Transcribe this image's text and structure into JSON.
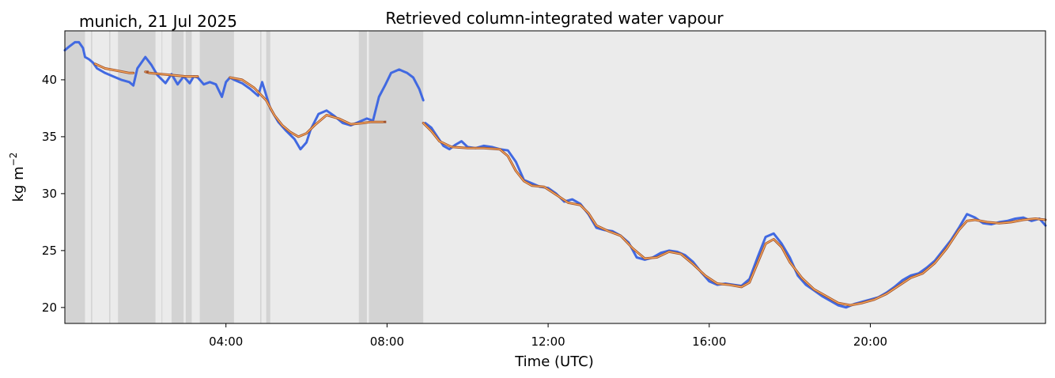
{
  "chart_data": {
    "type": "line",
    "title": "Retrieved column-integrated water vapour",
    "location_date": "munich, 21 Jul 2025",
    "xlabel": "Time (UTC)",
    "ylabel": "kg m",
    "ylabel_sup": "−2",
    "xlim": [
      0,
      24.35
    ],
    "ylim": [
      18.6,
      44.3
    ],
    "x_ticks": [
      {
        "value": 4,
        "label": "04:00"
      },
      {
        "value": 8,
        "label": "08:00"
      },
      {
        "value": 12,
        "label": "12:00"
      },
      {
        "value": 16,
        "label": "16:00"
      },
      {
        "value": 20,
        "label": "20:00"
      }
    ],
    "y_ticks": [
      {
        "value": 20,
        "label": "20"
      },
      {
        "value": 25,
        "label": "25"
      },
      {
        "value": 30,
        "label": "30"
      },
      {
        "value": 35,
        "label": "35"
      },
      {
        "value": 40,
        "label": "40"
      }
    ],
    "colors": {
      "background": "#ebebeb",
      "cloud_shade": "#d3d3d3",
      "raw": "#4169e1",
      "smooth_outline": "#a0522d",
      "smooth_core": "#ffb060"
    },
    "shaded_intervals": [
      [
        0.0,
        0.5
      ],
      [
        0.65,
        0.68
      ],
      [
        1.1,
        1.13
      ],
      [
        1.32,
        2.25
      ],
      [
        2.4,
        2.42
      ],
      [
        2.65,
        2.95
      ],
      [
        3.0,
        3.15
      ],
      [
        3.35,
        4.2
      ],
      [
        4.85,
        4.88
      ],
      [
        5.0,
        5.1
      ],
      [
        7.3,
        7.5
      ],
      [
        7.55,
        8.9
      ]
    ],
    "series": [
      {
        "name": "raw",
        "x": [
          0.0,
          0.1,
          0.25,
          0.35,
          0.45,
          0.5,
          0.6,
          0.7,
          0.8,
          1.0,
          1.2,
          1.4,
          1.6,
          1.7,
          1.8,
          2.0,
          2.15,
          2.3,
          2.5,
          2.65,
          2.8,
          2.95,
          3.1,
          3.2,
          3.3,
          3.45,
          3.6,
          3.75,
          3.9,
          4.0,
          4.1,
          4.2,
          4.4,
          4.6,
          4.8,
          4.9,
          5.1,
          5.3,
          5.5,
          5.7,
          5.85,
          6.0,
          6.1,
          6.3,
          6.5,
          6.7,
          6.9,
          7.1,
          7.3,
          7.5,
          7.65,
          7.8,
          7.95,
          8.1,
          8.3,
          8.5,
          8.65,
          8.8,
          8.9
        ],
        "y": [
          42.6,
          42.9,
          43.3,
          43.3,
          42.8,
          42.0,
          41.8,
          41.5,
          41.0,
          40.6,
          40.3,
          40.0,
          39.8,
          39.5,
          41.0,
          42.0,
          41.3,
          40.4,
          39.7,
          40.5,
          39.6,
          40.3,
          39.7,
          40.3,
          40.2,
          39.6,
          39.8,
          39.6,
          38.5,
          39.8,
          40.2,
          40.0,
          39.7,
          39.2,
          38.6,
          39.8,
          37.5,
          36.3,
          35.5,
          34.8,
          33.9,
          34.5,
          35.6,
          37.0,
          37.3,
          36.8,
          36.2,
          36.0,
          36.3,
          36.6,
          36.4,
          38.5,
          39.5,
          40.6,
          40.9,
          40.6,
          40.2,
          39.2,
          38.2
        ]
      },
      {
        "name": "raw",
        "x": [
          8.95,
          9.1,
          9.25,
          9.4,
          9.55,
          9.7,
          9.85,
          10.0,
          10.2,
          10.4,
          10.6,
          10.8,
          11.0,
          11.2,
          11.4,
          11.6,
          11.8,
          12.0,
          12.2,
          12.4,
          12.6,
          12.8,
          13.0,
          13.2,
          13.4,
          13.6,
          13.8,
          14.0,
          14.2,
          14.4,
          14.6,
          14.8,
          15.0,
          15.2,
          15.4,
          15.6,
          15.8,
          16.0,
          16.2,
          16.4,
          16.6,
          16.8,
          17.0,
          17.2,
          17.4,
          17.6,
          17.8,
          18.0,
          18.2,
          18.4,
          18.6,
          18.8,
          19.0,
          19.2,
          19.4,
          19.6,
          19.8,
          20.0,
          20.2,
          20.4,
          20.6,
          20.8,
          21.0,
          21.2,
          21.4,
          21.6,
          21.8,
          22.0,
          22.2,
          22.4,
          22.6,
          22.8,
          23.0,
          23.2,
          23.4,
          23.6,
          23.8,
          24.0,
          24.2,
          24.35
        ],
        "y": [
          36.2,
          35.8,
          35.0,
          34.2,
          33.9,
          34.3,
          34.6,
          34.1,
          34.0,
          34.2,
          34.1,
          33.9,
          33.8,
          32.8,
          31.2,
          30.9,
          30.6,
          30.5,
          30.0,
          29.3,
          29.5,
          29.1,
          28.2,
          27.0,
          26.8,
          26.7,
          26.3,
          25.7,
          24.4,
          24.2,
          24.4,
          24.8,
          25.0,
          24.9,
          24.6,
          24.0,
          23.1,
          22.3,
          22.0,
          22.1,
          22.0,
          21.9,
          22.5,
          24.4,
          26.2,
          26.5,
          25.6,
          24.4,
          22.8,
          22.0,
          21.5,
          21.0,
          20.6,
          20.2,
          20.0,
          20.3,
          20.5,
          20.7,
          20.9,
          21.3,
          21.8,
          22.4,
          22.8,
          23.0,
          23.5,
          24.1,
          25.0,
          25.9,
          27.0,
          28.2,
          27.9,
          27.4,
          27.3,
          27.5,
          27.6,
          27.8,
          27.9,
          27.6,
          27.8,
          27.2
        ]
      },
      {
        "name": "smoothed",
        "x": [
          0.75,
          1.0,
          1.3,
          1.6,
          1.7
        ],
        "y": [
          41.4,
          41.0,
          40.8,
          40.6,
          40.6
        ]
      },
      {
        "name": "smoothed",
        "x": [
          2.0,
          2.1,
          2.4,
          2.7,
          3.0,
          3.3
        ],
        "y": [
          40.7,
          40.6,
          40.5,
          40.4,
          40.3,
          40.3
        ]
      },
      {
        "name": "smoothed",
        "x": [
          4.1,
          4.4,
          4.7,
          5.0,
          5.2,
          5.4,
          5.6,
          5.8,
          6.0,
          6.2,
          6.5,
          6.8,
          7.1,
          7.4,
          7.6,
          7.9
        ],
        "y": [
          40.2,
          40.0,
          39.3,
          38.2,
          36.9,
          36.0,
          35.4,
          35.0,
          35.3,
          36.0,
          36.9,
          36.6,
          36.1,
          36.2,
          36.3,
          36.3
        ]
      },
      {
        "name": "smoothed",
        "x": [
          8.9,
          9.1,
          9.3,
          9.6,
          10.0,
          10.4,
          10.8,
          11.0,
          11.2,
          11.4,
          11.6,
          11.9,
          12.2,
          12.5,
          12.8,
          13.0,
          13.2,
          13.5,
          13.8,
          14.1,
          14.4,
          14.7,
          15.0,
          15.3,
          15.6,
          15.9,
          16.2,
          16.5,
          16.8,
          17.0,
          17.2,
          17.4,
          17.6,
          17.8,
          18.0,
          18.3,
          18.6,
          18.9,
          19.2,
          19.5,
          19.8,
          20.1,
          20.4,
          20.7,
          21.0,
          21.3,
          21.6,
          21.9,
          22.2,
          22.4,
          22.6,
          22.9,
          23.2,
          23.5,
          23.8,
          24.1,
          24.35
        ],
        "y": [
          36.2,
          35.5,
          34.6,
          34.1,
          34.0,
          34.0,
          33.9,
          33.3,
          32.0,
          31.1,
          30.7,
          30.6,
          29.9,
          29.2,
          29.0,
          28.3,
          27.2,
          26.7,
          26.3,
          25.2,
          24.3,
          24.4,
          24.9,
          24.7,
          23.8,
          22.8,
          22.1,
          22.0,
          21.8,
          22.2,
          23.9,
          25.6,
          26.0,
          25.3,
          24.0,
          22.6,
          21.6,
          21.0,
          20.4,
          20.2,
          20.4,
          20.7,
          21.2,
          21.9,
          22.6,
          23.0,
          23.9,
          25.2,
          26.8,
          27.6,
          27.7,
          27.5,
          27.4,
          27.5,
          27.7,
          27.8,
          27.7
        ]
      }
    ],
    "isolated_points": [
      {
        "x": 2.05,
        "y": 40.7
      },
      {
        "x": 7.95,
        "y": 36.3
      }
    ]
  }
}
